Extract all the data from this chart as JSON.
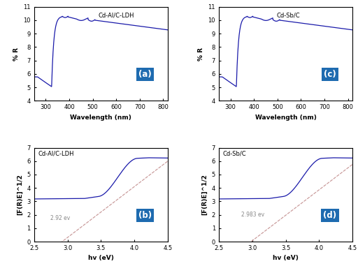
{
  "panel_a": {
    "label": "Cd-Al/C-LDH",
    "panel_letter": "(a)",
    "xlabel": "Wavelength (nm)",
    "ylabel": "% R",
    "xlim": [
      250,
      820
    ],
    "ylim": [
      4,
      11
    ],
    "yticks": [
      4,
      5,
      6,
      7,
      8,
      9,
      10,
      11
    ],
    "xticks": [
      300,
      400,
      500,
      600,
      700,
      800
    ]
  },
  "panel_c": {
    "label": "Cd-Sb/C",
    "panel_letter": "(c)",
    "xlabel": "Wavelength (nm)",
    "ylabel": "% R",
    "xlim": [
      250,
      820
    ],
    "ylim": [
      4,
      11
    ],
    "yticks": [
      4,
      5,
      6,
      7,
      8,
      9,
      10,
      11
    ],
    "xticks": [
      300,
      400,
      500,
      600,
      700,
      800
    ]
  },
  "panel_b": {
    "label": "Cd-Al/C-LDH",
    "panel_letter": "(b)",
    "xlabel": "hv (eV)",
    "ylabel": "[F(R)E]^1/2",
    "xlim": [
      2.5,
      4.5
    ],
    "ylim": [
      0,
      7
    ],
    "yticks": [
      0,
      1,
      2,
      3,
      4,
      5,
      6,
      7
    ],
    "xticks": [
      2.5,
      3.0,
      3.5,
      4.0,
      4.5
    ],
    "bandgap": 2.92,
    "bandgap_label": "2.92 ev"
  },
  "panel_d": {
    "label": "Cd-Sb/C",
    "panel_letter": "(d)",
    "xlabel": "hv (eV)",
    "ylabel": "[F(R)E]^1/2",
    "xlim": [
      2.5,
      4.5
    ],
    "ylim": [
      0,
      7
    ],
    "yticks": [
      0,
      1,
      2,
      3,
      4,
      5,
      6,
      7
    ],
    "xticks": [
      2.5,
      3.0,
      3.5,
      4.0,
      4.5
    ],
    "bandgap": 2.983,
    "bandgap_label": "2.983 ev"
  },
  "line_color": "#1a1aaa",
  "tangent_color": "#c89898",
  "box_color": "#1E6BB0",
  "box_text_color": "#FFFFFF"
}
